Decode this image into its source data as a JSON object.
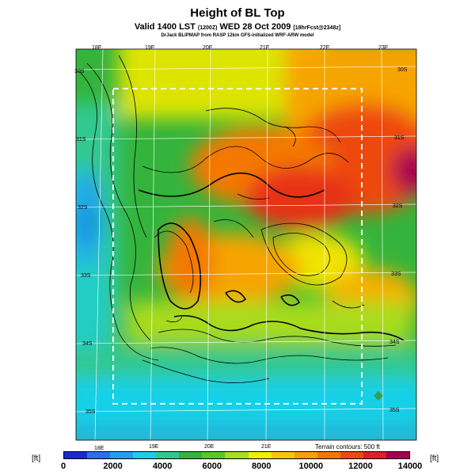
{
  "title": "Height of BL Top",
  "subtitle_main": "Valid 1400 LST",
  "subtitle_z": "(1200Z)",
  "subtitle_date": "WED 28 Oct 2009",
  "subtitle_fcst": "[18hrFcst@2348z]",
  "credit": "DrJack BLIPMAP from RASP 12km GFS-initialized WRF-ARW model",
  "terrain_note": "Terrain contours: 500 ft",
  "units_left": "[ft]",
  "units_right": "[ft]",
  "lon_labels_top": [
    "18E",
    "19E",
    "20E",
    "21E",
    "22E",
    "23E"
  ],
  "lon_labels_bottom": [
    "18E",
    "19E",
    "20E",
    "21E"
  ],
  "lat_labels_left": [
    "30S",
    "31S",
    "32S",
    "33S",
    "34S",
    "35S"
  ],
  "lat_labels_right": [
    "30S",
    "31S",
    "32S",
    "33S",
    "34S",
    "35S"
  ],
  "colorbar": {
    "ticks": [
      "0",
      "2000",
      "4000",
      "6000",
      "8000",
      "10000",
      "12000",
      "14000"
    ],
    "colors": [
      "#1a2ad0",
      "#2f6ef0",
      "#22a0f0",
      "#18d0e8",
      "#30c890",
      "#34b43c",
      "#58c828",
      "#a8dc1e",
      "#f0f000",
      "#f6c800",
      "#f8a000",
      "#f47800",
      "#ee4a10",
      "#e01e2a",
      "#a80050"
    ]
  }
}
